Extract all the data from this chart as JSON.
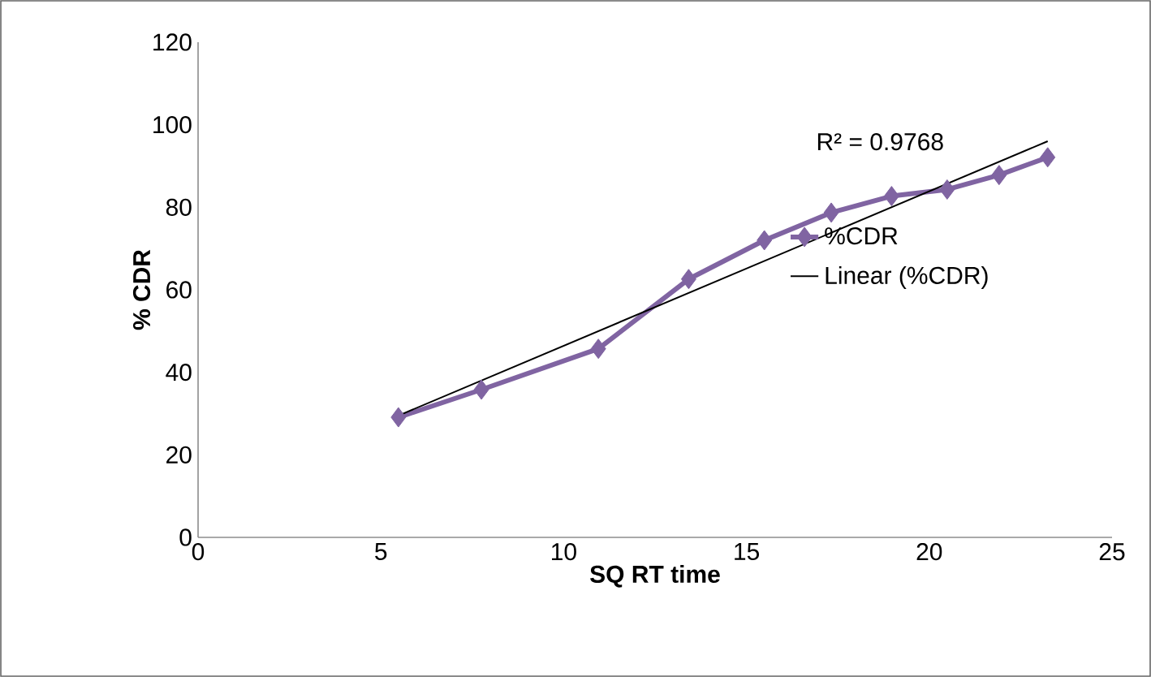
{
  "chart_data": {
    "type": "line",
    "xlabel": "SQ RT time",
    "ylabel": "% CDR",
    "xlim": [
      0,
      25
    ],
    "xticks": [
      0,
      5,
      10,
      15,
      20,
      25
    ],
    "ylim": [
      0,
      120
    ],
    "yticks": [
      0,
      20,
      40,
      60,
      80,
      100,
      120
    ],
    "grid": false,
    "legend": "right",
    "marker": "diamond",
    "annotations": [
      "R² = 0.9768"
    ],
    "series": [
      {
        "name": "%CDR",
        "color": "#8064a2",
        "x": [
          5.48,
          7.75,
          10.95,
          13.42,
          15.49,
          17.32,
          18.97,
          20.49,
          21.91,
          23.24
        ],
        "values": [
          29.1,
          35.8,
          45.7,
          62.6,
          72.0,
          78.7,
          82.7,
          84.3,
          87.8,
          92.1
        ]
      },
      {
        "name": "Linear (%CDR)",
        "type": "line",
        "color": "#000000",
        "marker": "none",
        "x": [
          5.48,
          23.24
        ],
        "values": [
          29.5,
          96.0
        ]
      }
    ]
  }
}
